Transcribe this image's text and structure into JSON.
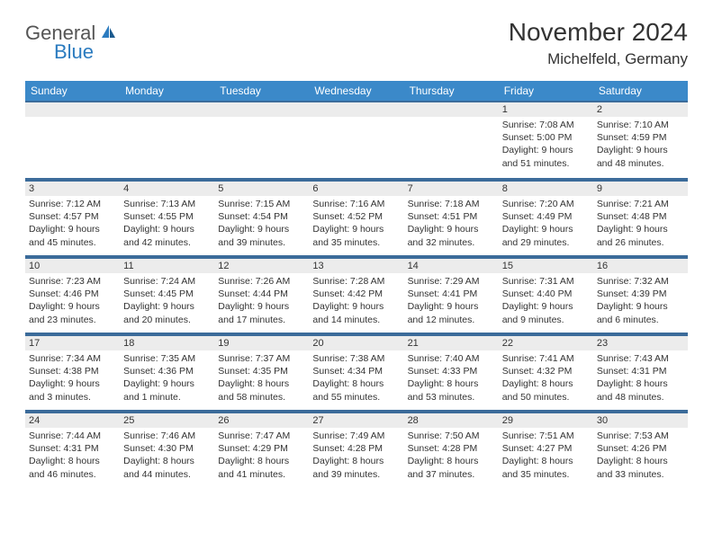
{
  "logo": {
    "text1": "General",
    "text2": "Blue"
  },
  "header": {
    "title": "November 2024",
    "location": "Michelfeld, Germany"
  },
  "colors": {
    "headerBg": "#3b89c9",
    "border": "#3b6b9a",
    "dayBg": "#ececec"
  },
  "weekdays": [
    "Sunday",
    "Monday",
    "Tuesday",
    "Wednesday",
    "Thursday",
    "Friday",
    "Saturday"
  ],
  "weeks": [
    [
      null,
      null,
      null,
      null,
      null,
      {
        "num": "1",
        "sunrise": "Sunrise: 7:08 AM",
        "sunset": "Sunset: 5:00 PM",
        "daylight": "Daylight: 9 hours and 51 minutes."
      },
      {
        "num": "2",
        "sunrise": "Sunrise: 7:10 AM",
        "sunset": "Sunset: 4:59 PM",
        "daylight": "Daylight: 9 hours and 48 minutes."
      }
    ],
    [
      {
        "num": "3",
        "sunrise": "Sunrise: 7:12 AM",
        "sunset": "Sunset: 4:57 PM",
        "daylight": "Daylight: 9 hours and 45 minutes."
      },
      {
        "num": "4",
        "sunrise": "Sunrise: 7:13 AM",
        "sunset": "Sunset: 4:55 PM",
        "daylight": "Daylight: 9 hours and 42 minutes."
      },
      {
        "num": "5",
        "sunrise": "Sunrise: 7:15 AM",
        "sunset": "Sunset: 4:54 PM",
        "daylight": "Daylight: 9 hours and 39 minutes."
      },
      {
        "num": "6",
        "sunrise": "Sunrise: 7:16 AM",
        "sunset": "Sunset: 4:52 PM",
        "daylight": "Daylight: 9 hours and 35 minutes."
      },
      {
        "num": "7",
        "sunrise": "Sunrise: 7:18 AM",
        "sunset": "Sunset: 4:51 PM",
        "daylight": "Daylight: 9 hours and 32 minutes."
      },
      {
        "num": "8",
        "sunrise": "Sunrise: 7:20 AM",
        "sunset": "Sunset: 4:49 PM",
        "daylight": "Daylight: 9 hours and 29 minutes."
      },
      {
        "num": "9",
        "sunrise": "Sunrise: 7:21 AM",
        "sunset": "Sunset: 4:48 PM",
        "daylight": "Daylight: 9 hours and 26 minutes."
      }
    ],
    [
      {
        "num": "10",
        "sunrise": "Sunrise: 7:23 AM",
        "sunset": "Sunset: 4:46 PM",
        "daylight": "Daylight: 9 hours and 23 minutes."
      },
      {
        "num": "11",
        "sunrise": "Sunrise: 7:24 AM",
        "sunset": "Sunset: 4:45 PM",
        "daylight": "Daylight: 9 hours and 20 minutes."
      },
      {
        "num": "12",
        "sunrise": "Sunrise: 7:26 AM",
        "sunset": "Sunset: 4:44 PM",
        "daylight": "Daylight: 9 hours and 17 minutes."
      },
      {
        "num": "13",
        "sunrise": "Sunrise: 7:28 AM",
        "sunset": "Sunset: 4:42 PM",
        "daylight": "Daylight: 9 hours and 14 minutes."
      },
      {
        "num": "14",
        "sunrise": "Sunrise: 7:29 AM",
        "sunset": "Sunset: 4:41 PM",
        "daylight": "Daylight: 9 hours and 12 minutes."
      },
      {
        "num": "15",
        "sunrise": "Sunrise: 7:31 AM",
        "sunset": "Sunset: 4:40 PM",
        "daylight": "Daylight: 9 hours and 9 minutes."
      },
      {
        "num": "16",
        "sunrise": "Sunrise: 7:32 AM",
        "sunset": "Sunset: 4:39 PM",
        "daylight": "Daylight: 9 hours and 6 minutes."
      }
    ],
    [
      {
        "num": "17",
        "sunrise": "Sunrise: 7:34 AM",
        "sunset": "Sunset: 4:38 PM",
        "daylight": "Daylight: 9 hours and 3 minutes."
      },
      {
        "num": "18",
        "sunrise": "Sunrise: 7:35 AM",
        "sunset": "Sunset: 4:36 PM",
        "daylight": "Daylight: 9 hours and 1 minute."
      },
      {
        "num": "19",
        "sunrise": "Sunrise: 7:37 AM",
        "sunset": "Sunset: 4:35 PM",
        "daylight": "Daylight: 8 hours and 58 minutes."
      },
      {
        "num": "20",
        "sunrise": "Sunrise: 7:38 AM",
        "sunset": "Sunset: 4:34 PM",
        "daylight": "Daylight: 8 hours and 55 minutes."
      },
      {
        "num": "21",
        "sunrise": "Sunrise: 7:40 AM",
        "sunset": "Sunset: 4:33 PM",
        "daylight": "Daylight: 8 hours and 53 minutes."
      },
      {
        "num": "22",
        "sunrise": "Sunrise: 7:41 AM",
        "sunset": "Sunset: 4:32 PM",
        "daylight": "Daylight: 8 hours and 50 minutes."
      },
      {
        "num": "23",
        "sunrise": "Sunrise: 7:43 AM",
        "sunset": "Sunset: 4:31 PM",
        "daylight": "Daylight: 8 hours and 48 minutes."
      }
    ],
    [
      {
        "num": "24",
        "sunrise": "Sunrise: 7:44 AM",
        "sunset": "Sunset: 4:31 PM",
        "daylight": "Daylight: 8 hours and 46 minutes."
      },
      {
        "num": "25",
        "sunrise": "Sunrise: 7:46 AM",
        "sunset": "Sunset: 4:30 PM",
        "daylight": "Daylight: 8 hours and 44 minutes."
      },
      {
        "num": "26",
        "sunrise": "Sunrise: 7:47 AM",
        "sunset": "Sunset: 4:29 PM",
        "daylight": "Daylight: 8 hours and 41 minutes."
      },
      {
        "num": "27",
        "sunrise": "Sunrise: 7:49 AM",
        "sunset": "Sunset: 4:28 PM",
        "daylight": "Daylight: 8 hours and 39 minutes."
      },
      {
        "num": "28",
        "sunrise": "Sunrise: 7:50 AM",
        "sunset": "Sunset: 4:28 PM",
        "daylight": "Daylight: 8 hours and 37 minutes."
      },
      {
        "num": "29",
        "sunrise": "Sunrise: 7:51 AM",
        "sunset": "Sunset: 4:27 PM",
        "daylight": "Daylight: 8 hours and 35 minutes."
      },
      {
        "num": "30",
        "sunrise": "Sunrise: 7:53 AM",
        "sunset": "Sunset: 4:26 PM",
        "daylight": "Daylight: 8 hours and 33 minutes."
      }
    ]
  ]
}
